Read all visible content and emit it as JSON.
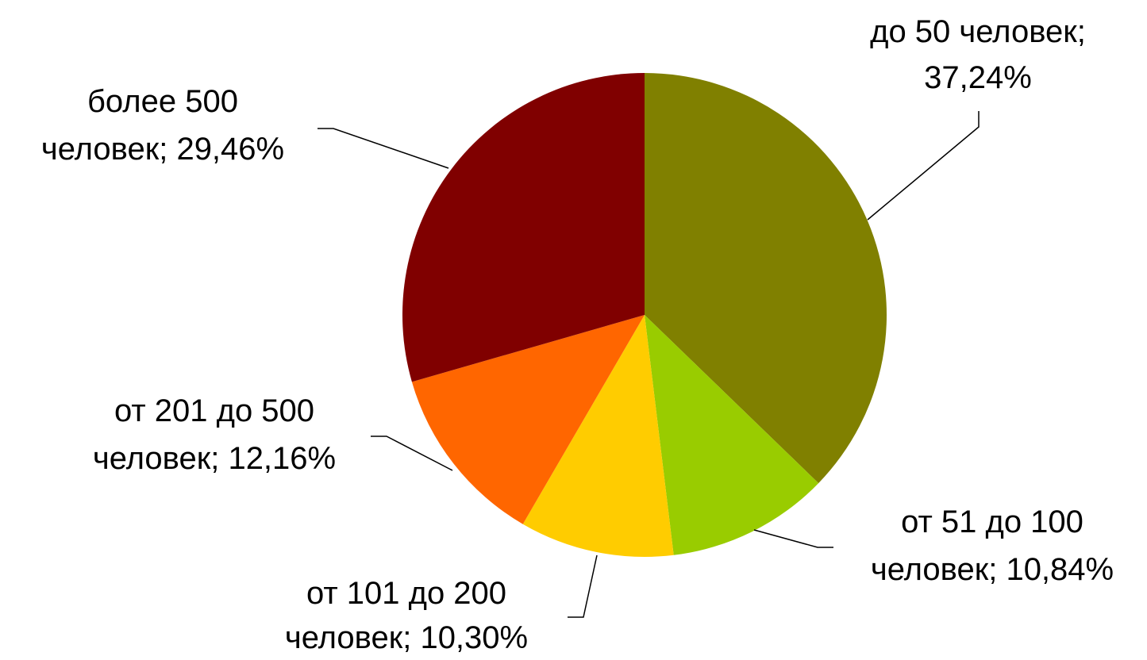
{
  "chart_data": {
    "type": "pie",
    "categories": [
      "до 50 человек",
      "от 51 до 100 человек",
      "от 101 до 200 человек",
      "от 201 до 500 человек",
      "более 500 человек"
    ],
    "values": [
      37.24,
      10.84,
      10.3,
      12.16,
      29.46
    ],
    "value_labels": [
      [
        "до 50 человек;",
        "37,24%"
      ],
      [
        "от 51 до 100",
        "человек; 10,84%"
      ],
      [
        "от 101 до 200",
        "человек; 10,30%"
      ],
      [
        "от 201 до 500",
        "человек; 12,16%"
      ],
      [
        "более 500",
        "человек; 29,46%"
      ]
    ],
    "colors": [
      "#808000",
      "#99cc00",
      "#ffcc00",
      "#ff6600",
      "#800000"
    ]
  }
}
